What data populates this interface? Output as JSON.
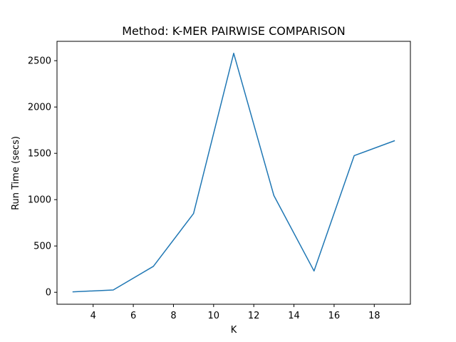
{
  "chart_data": {
    "type": "line",
    "title": "Method: K-MER PAIRWISE COMPARISON",
    "xlabel": "K",
    "ylabel": "Run Time (secs)",
    "x": [
      3,
      5,
      7,
      9,
      11,
      13,
      15,
      17,
      19
    ],
    "series": [
      {
        "values": [
          5,
          25,
          280,
          850,
          2580,
          1045,
          230,
          1475,
          1635
        ],
        "color": "#1f77b4"
      }
    ],
    "xlim": [
      2.2,
      19.8
    ],
    "ylim": [
      -129,
      2709
    ],
    "xticks": [
      "4",
      "6",
      "8",
      "10",
      "12",
      "14",
      "16",
      "18"
    ],
    "yticks": [
      "0",
      "500",
      "1000",
      "1500",
      "2000",
      "2500"
    ],
    "grid": false,
    "legend": "none"
  }
}
